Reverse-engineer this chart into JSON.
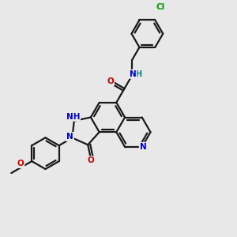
{
  "bg_color": "#e8e8e8",
  "bond_color": "#1a1a1a",
  "bond_lw": 1.6,
  "atom_colors": {
    "N": "#0000cc",
    "O": "#cc0000",
    "Cl": "#009900",
    "H_teal": "#008080",
    "C": "#1a1a1a"
  },
  "font_size": 7.5,
  "font_size_small": 6.5
}
